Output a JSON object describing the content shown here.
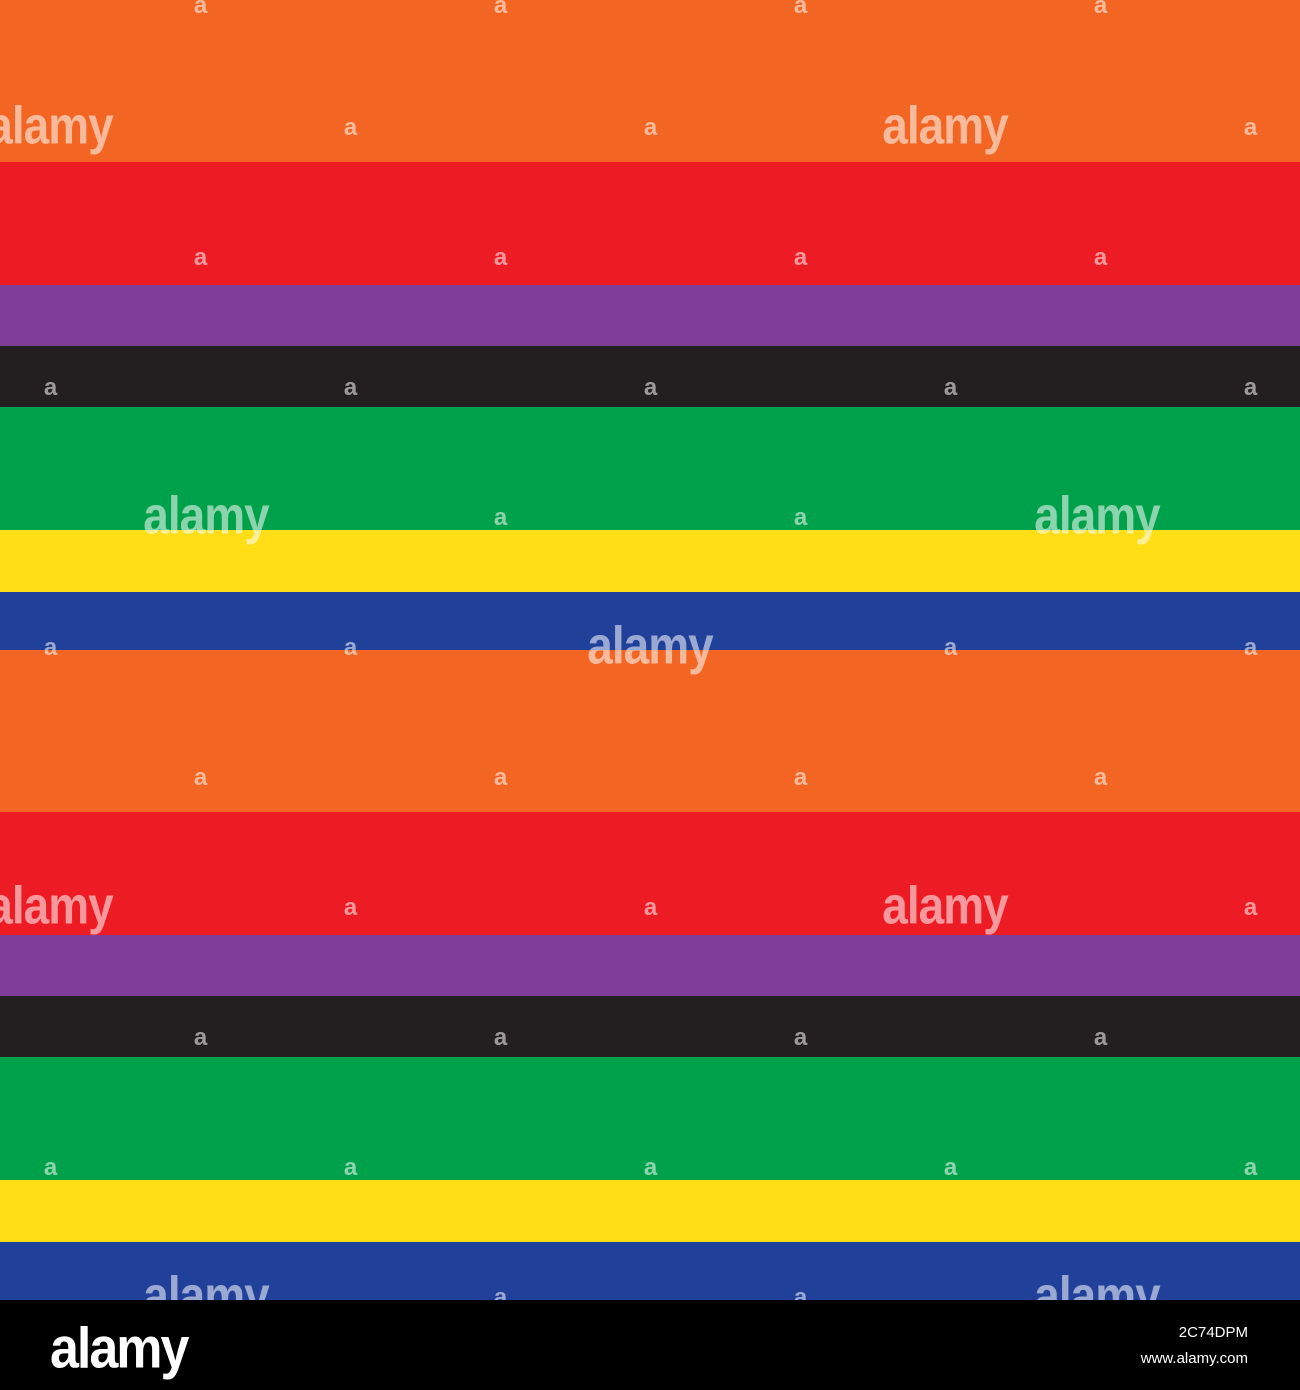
{
  "pattern": {
    "stripe_colors": [
      {
        "name": "orange",
        "hex": "#F26522"
      },
      {
        "name": "red",
        "hex": "#ED1C24"
      },
      {
        "name": "purple",
        "hex": "#7F3F98"
      },
      {
        "name": "black",
        "hex": "#231F20"
      },
      {
        "name": "green",
        "hex": "#00A14B"
      },
      {
        "name": "yellow",
        "hex": "#FFDE17"
      },
      {
        "name": "blue",
        "hex": "#21409A"
      }
    ],
    "repeat_count": 2
  },
  "watermark": {
    "logo_text": "alamy",
    "mark_text": "a"
  },
  "footer": {
    "logo": "alamy",
    "image_id": "2C74DPM",
    "site": "www.alamy.com"
  }
}
